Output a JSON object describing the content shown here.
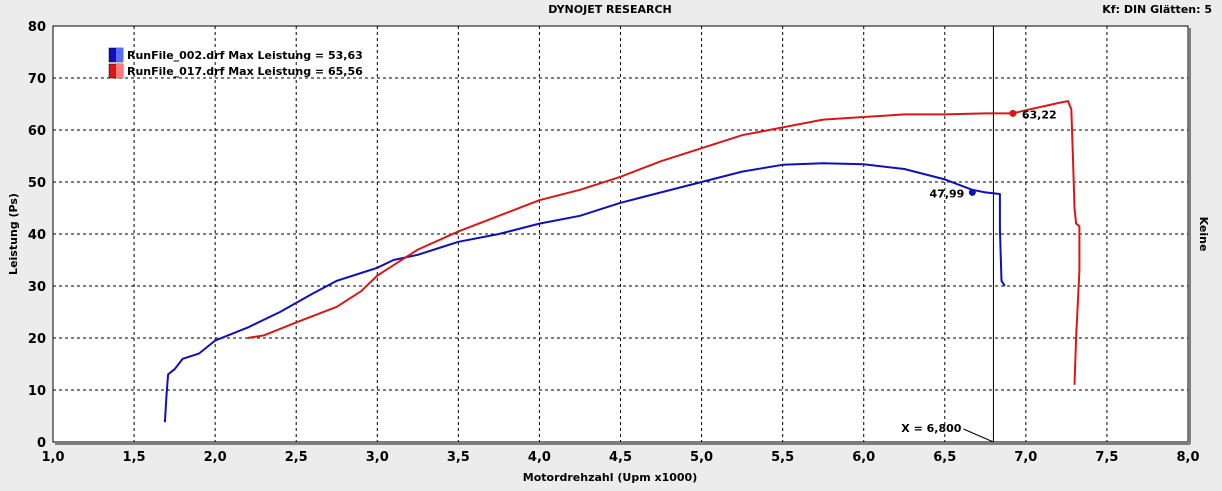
{
  "header": {
    "title": "DYNOJET RESEARCH",
    "settings": "Kf: DIN  Glätten: 5"
  },
  "colors": {
    "background": "#ececec",
    "plot_background": "#ffffff",
    "series_blue": "#1010b8",
    "series_red": "#d81818",
    "grid": "#000000"
  },
  "chart_data": {
    "type": "line",
    "xlabel": "Motordrehzahl (Upm x1000)",
    "ylabel": "Leistung (Ps)",
    "right_label": "Keine",
    "xlim": [
      1.0,
      8.0
    ],
    "ylim": [
      0,
      80
    ],
    "x_ticks": [
      "1,0",
      "1,5",
      "2,0",
      "2,5",
      "3,0",
      "3,5",
      "4,0",
      "4,5",
      "5,0",
      "5,5",
      "6,0",
      "6,5",
      "7,0",
      "7,5",
      "8,0"
    ],
    "y_ticks": [
      "0",
      "10",
      "20",
      "30",
      "40",
      "50",
      "60",
      "70",
      "80"
    ],
    "grid": true,
    "legend_position": "top-left",
    "cursor": {
      "x": 6.8,
      "label": "X = 6,800"
    },
    "series": [
      {
        "name": "RunFile_002.drf Max Leistung = 53,63",
        "color": "#1010b8",
        "marker": {
          "x": 6.67,
          "y": 48.0,
          "label": "47,99"
        },
        "points": [
          [
            1.69,
            3.8
          ],
          [
            1.7,
            9
          ],
          [
            1.71,
            13
          ],
          [
            1.75,
            14
          ],
          [
            1.8,
            16
          ],
          [
            1.9,
            17
          ],
          [
            2.0,
            19.5
          ],
          [
            2.2,
            22
          ],
          [
            2.4,
            25
          ],
          [
            2.6,
            28.5
          ],
          [
            2.75,
            31
          ],
          [
            2.9,
            32.5
          ],
          [
            3.0,
            33.5
          ],
          [
            3.1,
            35
          ],
          [
            3.25,
            36
          ],
          [
            3.4,
            37.5
          ],
          [
            3.5,
            38.5
          ],
          [
            3.75,
            40
          ],
          [
            4.0,
            42
          ],
          [
            4.25,
            43.5
          ],
          [
            4.5,
            46
          ],
          [
            4.75,
            48
          ],
          [
            5.0,
            50
          ],
          [
            5.25,
            52
          ],
          [
            5.5,
            53.3
          ],
          [
            5.75,
            53.6
          ],
          [
            6.0,
            53.4
          ],
          [
            6.25,
            52.5
          ],
          [
            6.5,
            50.5
          ],
          [
            6.67,
            48.5
          ],
          [
            6.75,
            48
          ],
          [
            6.84,
            47.7
          ],
          [
            6.84,
            41
          ],
          [
            6.85,
            31
          ],
          [
            6.86,
            30.5
          ],
          [
            6.87,
            30
          ]
        ]
      },
      {
        "name": "RunFile_017.drf Max Leistung = 65,56",
        "color": "#d81818",
        "marker": {
          "x": 6.92,
          "y": 63.2,
          "label": "63,22"
        },
        "points": [
          [
            2.2,
            20
          ],
          [
            2.3,
            20.5
          ],
          [
            2.5,
            23
          ],
          [
            2.75,
            26
          ],
          [
            2.9,
            29
          ],
          [
            3.0,
            32
          ],
          [
            3.1,
            34
          ],
          [
            3.25,
            37
          ],
          [
            3.5,
            40.5
          ],
          [
            3.75,
            43.5
          ],
          [
            4.0,
            46.5
          ],
          [
            4.25,
            48.5
          ],
          [
            4.5,
            51
          ],
          [
            4.75,
            54
          ],
          [
            5.0,
            56.5
          ],
          [
            5.25,
            59
          ],
          [
            5.5,
            60.5
          ],
          [
            5.75,
            62
          ],
          [
            6.0,
            62.5
          ],
          [
            6.25,
            63
          ],
          [
            6.5,
            63
          ],
          [
            6.75,
            63.2
          ],
          [
            6.92,
            63.2
          ],
          [
            7.0,
            63.8
          ],
          [
            7.1,
            64.5
          ],
          [
            7.2,
            65.2
          ],
          [
            7.26,
            65.56
          ],
          [
            7.28,
            64
          ],
          [
            7.29,
            55
          ],
          [
            7.3,
            45
          ],
          [
            7.31,
            42
          ],
          [
            7.33,
            41.5
          ],
          [
            7.33,
            33
          ],
          [
            7.31,
            20
          ],
          [
            7.3,
            11
          ]
        ]
      }
    ]
  }
}
